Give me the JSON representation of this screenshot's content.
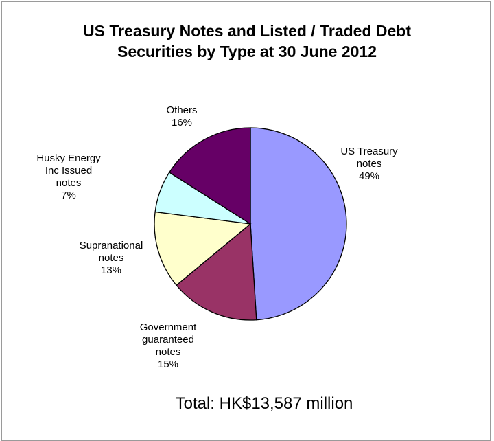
{
  "chart_data": {
    "type": "pie",
    "title": [
      "US Treasury Notes and Listed / Traded Debt",
      "Securities by Type at 30 June 2012"
    ],
    "total_label": "Total: HK$13,587 million",
    "slices": [
      {
        "label": [
          "US Treasury",
          "notes"
        ],
        "percent_label": "49%",
        "value": 49,
        "color": "#9999ff"
      },
      {
        "label": [
          "Government",
          "guaranteed",
          "notes"
        ],
        "percent_label": "15%",
        "value": 15,
        "color": "#993366"
      },
      {
        "label": [
          "Supranational",
          "notes"
        ],
        "percent_label": "13%",
        "value": 13,
        "color": "#ffffcc"
      },
      {
        "label": [
          "Husky Energy",
          "Inc Issued",
          "notes"
        ],
        "percent_label": "7%",
        "value": 7,
        "color": "#ccffff"
      },
      {
        "label": [
          "Others"
        ],
        "percent_label": "16%",
        "value": 16,
        "color": "#660066"
      }
    ]
  }
}
